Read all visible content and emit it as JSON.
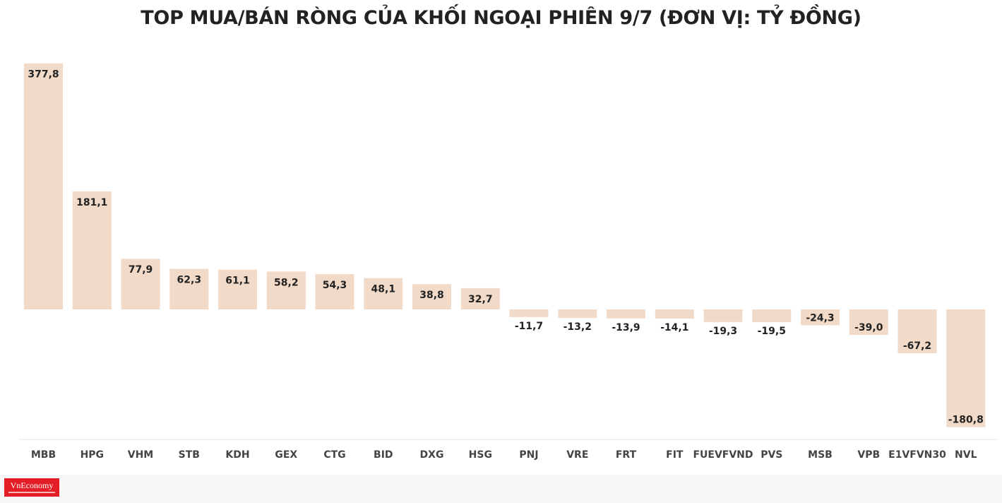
{
  "chart_data": {
    "type": "bar",
    "title": "TOP MUA/BÁN RÒNG CỦA KHỐI NGOẠI PHIÊN 9/7 (ĐƠN VỊ: TỶ ĐỒNG)",
    "xlabel": "",
    "ylabel": "",
    "categories": [
      "MBB",
      "HPG",
      "VHM",
      "STB",
      "KDH",
      "GEX",
      "CTG",
      "BID",
      "DXG",
      "HSG",
      "PNJ",
      "VRE",
      "FRT",
      "FIT",
      "FUEVFVND",
      "PVS",
      "MSB",
      "VPB",
      "E1VFVN30",
      "NVL"
    ],
    "values": [
      377.8,
      181.1,
      77.9,
      62.3,
      61.1,
      58.2,
      54.3,
      48.1,
      38.8,
      32.7,
      -11.7,
      -13.2,
      -13.9,
      -14.1,
      -19.3,
      -19.5,
      -24.3,
      -39.0,
      -67.2,
      -180.8
    ],
    "value_labels": [
      "377,8",
      "181,1",
      "77,9",
      "62,3",
      "61,1",
      "58,2",
      "54,3",
      "48,1",
      "38,8",
      "32,7",
      "-11,7",
      "-13,2",
      "-13,9",
      "-14,1",
      "-19,3",
      "-19,5",
      "-24,3",
      "-39,0",
      "-67,2",
      "-180,8"
    ],
    "grid": false,
    "legend": "none",
    "bar_color": "#f2dac8"
  },
  "logo": {
    "text": "VnEconomy"
  }
}
